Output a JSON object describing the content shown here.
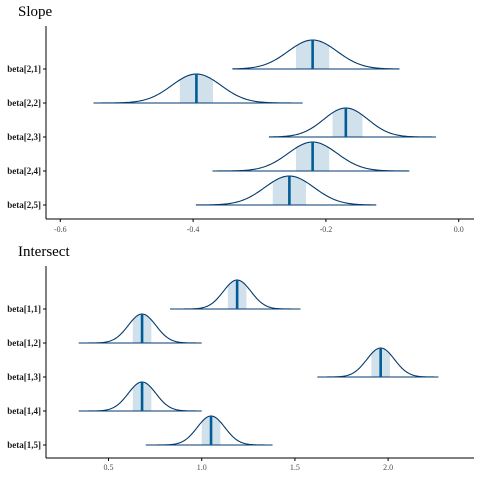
{
  "chart_data": [
    {
      "type": "density-ridges",
      "title": "Slope",
      "xlim": [
        -0.62,
        0.02
      ],
      "xticks": [
        -0.6,
        -0.4,
        -0.2,
        0.0
      ],
      "xtick_labels": [
        "-0.6",
        "-0.4",
        "-0.2",
        "0.0"
      ],
      "parameters": [
        {
          "label": "beta[2,1]",
          "median": -0.22,
          "interval": [
            -0.245,
            -0.195
          ],
          "range": [
            -0.34,
            -0.09
          ]
        },
        {
          "label": "beta[2,2]",
          "median": -0.395,
          "interval": [
            -0.42,
            -0.37
          ],
          "range": [
            -0.55,
            -0.235
          ]
        },
        {
          "label": "beta[2,3]",
          "median": -0.17,
          "interval": [
            -0.19,
            -0.145
          ],
          "range": [
            -0.285,
            -0.035
          ]
        },
        {
          "label": "beta[2,4]",
          "median": -0.22,
          "interval": [
            -0.245,
            -0.195
          ],
          "range": [
            -0.37,
            -0.075
          ]
        },
        {
          "label": "beta[2,5]",
          "median": -0.255,
          "interval": [
            -0.28,
            -0.23
          ],
          "range": [
            -0.395,
            -0.125
          ]
        }
      ]
    },
    {
      "type": "density-ridges",
      "title": "Intersect",
      "xlim": [
        0.17,
        2.45
      ],
      "xticks": [
        0.5,
        1.0,
        1.5,
        2.0
      ],
      "xtick_labels": [
        "0.5",
        "1.0",
        "1.5",
        "2.0"
      ],
      "parameters": [
        {
          "label": "beta[1,1]",
          "median": 1.19,
          "interval": [
            1.14,
            1.24
          ],
          "range": [
            0.83,
            1.53
          ]
        },
        {
          "label": "beta[1,2]",
          "median": 0.68,
          "interval": [
            0.63,
            0.73
          ],
          "range": [
            0.34,
            1.0
          ]
        },
        {
          "label": "beta[1,3]",
          "median": 1.96,
          "interval": [
            1.91,
            2.01
          ],
          "range": [
            1.62,
            2.27
          ]
        },
        {
          "label": "beta[1,4]",
          "median": 0.68,
          "interval": [
            0.63,
            0.73
          ],
          "range": [
            0.34,
            1.0
          ]
        },
        {
          "label": "beta[1,5]",
          "median": 1.05,
          "interval": [
            1.0,
            1.1
          ],
          "range": [
            0.7,
            1.38
          ]
        }
      ]
    }
  ],
  "colors": {
    "density_line": "#03396c",
    "interval_fill": "#d1e1ec",
    "median_line": "#005b96"
  }
}
